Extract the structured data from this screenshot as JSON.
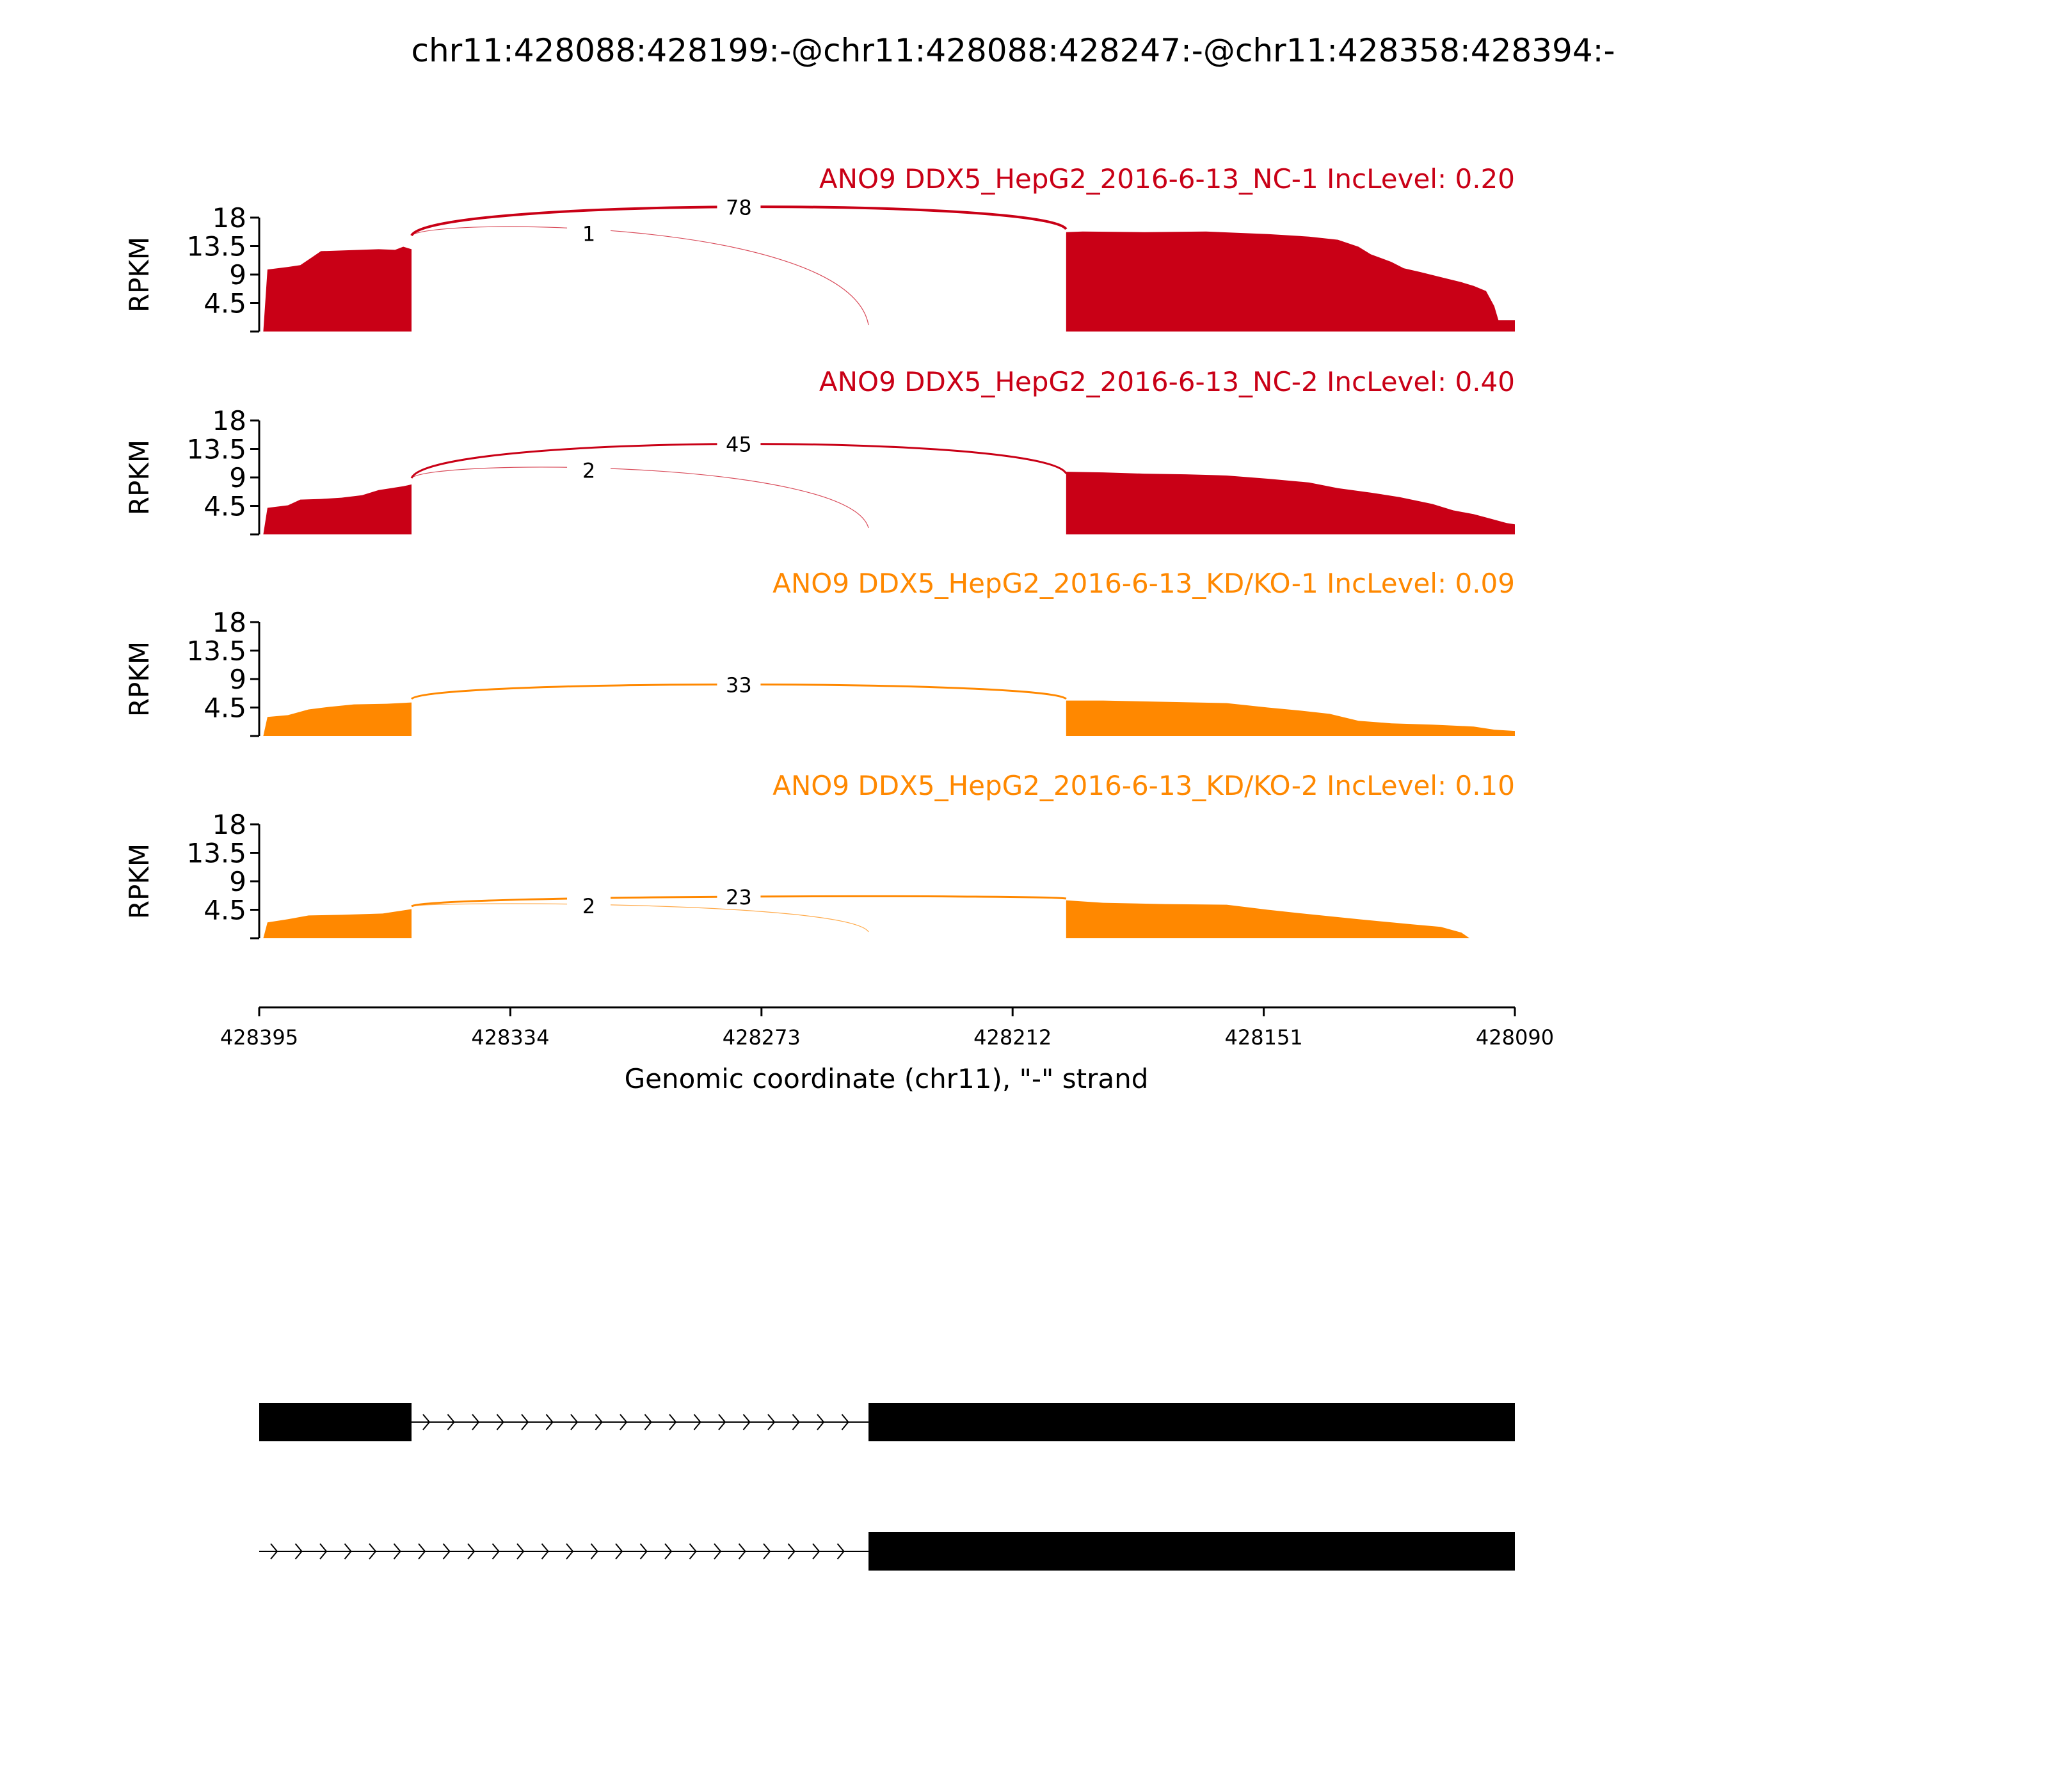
{
  "figure": {
    "title": "chr11:428088:428199:-@chr11:428088:428247:-@chr11:428358:428394:-",
    "colors": {
      "nc": "#c90016",
      "kd": "#ff8800",
      "exon": "#000000",
      "background": "#ffffff"
    }
  },
  "chart_data": {
    "type": "area",
    "subtype": "sashimi",
    "title": "chr11:428088:428199:-@chr11:428088:428247:-@chr11:428358:428394:-",
    "xlabel": "Genomic coordinate (chr11), \"-\" strand",
    "ylabel": "RPKM",
    "xlim": [
      428395,
      428090
    ],
    "x_ticks": [
      428395,
      428334,
      428273,
      428212,
      428151,
      428090
    ],
    "ylim": [
      0,
      18
    ],
    "y_ticks": [
      "4.5",
      "9",
      "13.5",
      "18"
    ],
    "y_tick_values": [
      4.5,
      9,
      13.5,
      18
    ],
    "grid": false,
    "legend": "none",
    "panels": [
      {
        "label": "ANO9 DDX5_HepG2_2016-6-13_NC-1 IncLevel: 0.20",
        "color": "#c90016",
        "coverage": [
          [
            428394,
            0
          ],
          [
            428393,
            9.8
          ],
          [
            428388,
            10.2
          ],
          [
            428385,
            10.5
          ],
          [
            428382,
            11.8
          ],
          [
            428380,
            12.7
          ],
          [
            428375,
            12.8
          ],
          [
            428366,
            13.0
          ],
          [
            428362,
            12.9
          ],
          [
            428360,
            13.4
          ],
          [
            428358,
            13.0
          ],
          [
            428355,
            13.5
          ],
          [
            428358,
            13.6
          ],
          [
            428357,
            14.0
          ],
          [
            428356,
            13.0
          ],
          [
            428355,
            12.6
          ],
          [
            428357,
            0
          ],
          [
            428356,
            0.5
          ],
          [
            428346,
            0.4
          ],
          [
            428338,
            0.3
          ],
          [
            428330,
            0.4
          ],
          [
            428316,
            0.3
          ],
          [
            428302,
            0.3
          ],
          [
            428287,
            0.3
          ],
          [
            428273,
            0.3
          ],
          [
            428262,
            0.4
          ],
          [
            428253,
            0.6
          ],
          [
            428247,
            0.7
          ],
          [
            428240,
            0.9
          ],
          [
            428232,
            1.2
          ],
          [
            428222,
            1.6
          ],
          [
            428216,
            1.8
          ],
          [
            428210,
            2.1
          ],
          [
            428201,
            2.6
          ],
          [
            428199,
            15.7
          ],
          [
            428195,
            15.8
          ],
          [
            428180,
            15.7
          ],
          [
            428165,
            15.8
          ],
          [
            428150,
            15.4
          ],
          [
            428140,
            15.0
          ],
          [
            428133,
            14.5
          ],
          [
            428128,
            13.4
          ],
          [
            428125,
            12.2
          ],
          [
            428120,
            11.0
          ],
          [
            428117,
            10.0
          ],
          [
            428113,
            9.4
          ],
          [
            428108,
            8.6
          ],
          [
            428103,
            7.8
          ],
          [
            428100,
            7.2
          ],
          [
            428097,
            6.4
          ],
          [
            428095,
            4.0
          ],
          [
            428094,
            1.8
          ],
          [
            428090,
            1.8
          ],
          [
            428090,
            0
          ]
        ],
        "junctions": [
          {
            "from": 428358,
            "to": 428199,
            "count": "78"
          },
          {
            "from": 428358,
            "to": 428247,
            "count": "1"
          }
        ]
      },
      {
        "label": "ANO9 DDX5_HepG2_2016-6-13_NC-2 IncLevel: 0.40",
        "color": "#c90016",
        "coverage": [
          [
            428394,
            0
          ],
          [
            428393,
            4.2
          ],
          [
            428388,
            4.6
          ],
          [
            428385,
            5.5
          ],
          [
            428380,
            5.6
          ],
          [
            428375,
            5.8
          ],
          [
            428370,
            6.2
          ],
          [
            428366,
            7.0
          ],
          [
            428362,
            7.4
          ],
          [
            428360,
            7.6
          ],
          [
            428358,
            7.9
          ],
          [
            428357,
            0
          ],
          [
            428356,
            0.8
          ],
          [
            428346,
            0.6
          ],
          [
            428336,
            0.5
          ],
          [
            428320,
            0.6
          ],
          [
            428300,
            0.6
          ],
          [
            428282,
            0.5
          ],
          [
            428270,
            0.5
          ],
          [
            428258,
            0.6
          ],
          [
            428247,
            1.0
          ],
          [
            428236,
            1.4
          ],
          [
            428222,
            1.8
          ],
          [
            428210,
            1.9
          ],
          [
            428201,
            2.2
          ],
          [
            428199,
            9.9
          ],
          [
            428190,
            9.8
          ],
          [
            428180,
            9.6
          ],
          [
            428170,
            9.5
          ],
          [
            428160,
            9.3
          ],
          [
            428150,
            8.8
          ],
          [
            428140,
            8.2
          ],
          [
            428133,
            7.3
          ],
          [
            428125,
            6.6
          ],
          [
            428118,
            5.9
          ],
          [
            428110,
            4.8
          ],
          [
            428105,
            3.8
          ],
          [
            428100,
            3.2
          ],
          [
            428096,
            2.5
          ],
          [
            428092,
            1.8
          ],
          [
            428090,
            1.6
          ],
          [
            428090,
            0
          ]
        ],
        "junctions": [
          {
            "from": 428358,
            "to": 428199,
            "count": "45"
          },
          {
            "from": 428358,
            "to": 428247,
            "count": "2"
          }
        ]
      },
      {
        "label": "ANO9 DDX5_HepG2_2016-6-13_KD/KO-1 IncLevel: 0.09",
        "color": "#ff8800",
        "coverage": [
          [
            428394,
            0
          ],
          [
            428393,
            3.0
          ],
          [
            428388,
            3.3
          ],
          [
            428383,
            4.2
          ],
          [
            428378,
            4.6
          ],
          [
            428372,
            5.0
          ],
          [
            428364,
            5.1
          ],
          [
            428358,
            5.3
          ],
          [
            428357,
            0
          ],
          [
            428356,
            0.1
          ],
          [
            428300,
            0.1
          ],
          [
            428247,
            0.15
          ],
          [
            428220,
            0.2
          ],
          [
            428201,
            0.5
          ],
          [
            428199,
            5.6
          ],
          [
            428190,
            5.6
          ],
          [
            428175,
            5.4
          ],
          [
            428160,
            5.2
          ],
          [
            428150,
            4.5
          ],
          [
            428142,
            4.0
          ],
          [
            428135,
            3.5
          ],
          [
            428128,
            2.4
          ],
          [
            428120,
            2.0
          ],
          [
            428110,
            1.8
          ],
          [
            428100,
            1.5
          ],
          [
            428095,
            1.0
          ],
          [
            428090,
            0.8
          ],
          [
            428090,
            0
          ]
        ],
        "junctions": [
          {
            "from": 428358,
            "to": 428199,
            "count": "33"
          }
        ]
      },
      {
        "label": "ANO9 DDX5_HepG2_2016-6-13_KD/KO-2 IncLevel: 0.10",
        "color": "#ff8800",
        "coverage": [
          [
            428394,
            0
          ],
          [
            428393,
            2.5
          ],
          [
            428388,
            3.0
          ],
          [
            428383,
            3.6
          ],
          [
            428375,
            3.7
          ],
          [
            428365,
            3.9
          ],
          [
            428360,
            4.4
          ],
          [
            428357,
            4.7
          ],
          [
            428357,
            0
          ],
          [
            428356,
            0.4
          ],
          [
            428340,
            0.4
          ],
          [
            428330,
            0.2
          ],
          [
            428310,
            0.3
          ],
          [
            428290,
            0.3
          ],
          [
            428270,
            0.3
          ],
          [
            428250,
            0.3
          ],
          [
            428247,
            1.1
          ],
          [
            428230,
            1.2
          ],
          [
            428220,
            1.0
          ],
          [
            428212,
            1.1
          ],
          [
            428205,
            2.0
          ],
          [
            428199,
            6.0
          ],
          [
            428190,
            5.6
          ],
          [
            428175,
            5.4
          ],
          [
            428160,
            5.3
          ],
          [
            428150,
            4.5
          ],
          [
            428140,
            3.8
          ],
          [
            428128,
            3.0
          ],
          [
            428115,
            2.2
          ],
          [
            428108,
            1.8
          ],
          [
            428103,
            0.9
          ],
          [
            428101,
            0
          ],
          [
            428090,
            0
          ]
        ],
        "junctions": [
          {
            "from": 428358,
            "to": 428199,
            "count": "23"
          },
          {
            "from": 428358,
            "to": 428247,
            "count": "2"
          }
        ]
      }
    ],
    "isoforms": [
      {
        "exons": [
          [
            428395,
            428358
          ],
          [
            428247,
            428090
          ]
        ]
      },
      {
        "intron_start": 428395,
        "exons": [
          [
            428247,
            428090
          ]
        ]
      }
    ]
  }
}
